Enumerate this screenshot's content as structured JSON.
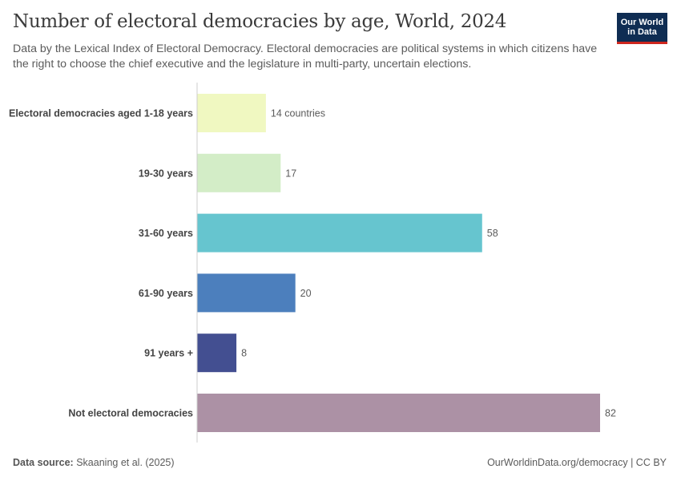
{
  "header": {
    "title": "Number of electoral democracies by age, World, 2024",
    "subtitle": "Data by the Lexical Index of Electoral Democracy. Electoral democracies are political systems in which citizens have the right to choose the chief executive and the legislature in multi-party, uncertain elections.",
    "logo": "Our World in Data"
  },
  "chart_data": {
    "type": "bar",
    "orientation": "horizontal",
    "categories": [
      "Electoral democracies aged 1-18 years",
      "19-30 years",
      "31-60 years",
      "61-90 years",
      "91 years +",
      "Not electoral democracies"
    ],
    "values": [
      14,
      17,
      58,
      20,
      8,
      82
    ],
    "value_labels": [
      "14 countries",
      "17",
      "58",
      "20",
      "8",
      "82"
    ],
    "colors": [
      "#f0f8c1",
      "#d3edc7",
      "#66c5cf",
      "#4c7fbd",
      "#434f91",
      "#ac91a5"
    ],
    "xlim": [
      0,
      82
    ],
    "grid": false
  },
  "footer": {
    "source_label": "Data source:",
    "source": "Skaaning et al. (2025)",
    "license": "OurWorldinData.org/democracy | CC BY"
  }
}
